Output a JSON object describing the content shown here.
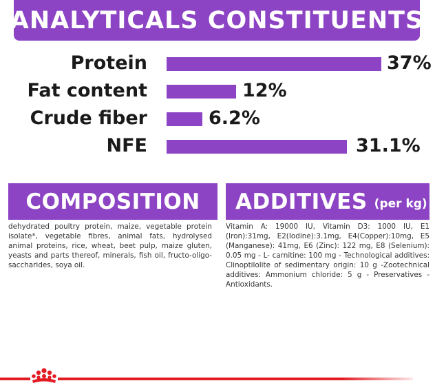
{
  "header": {
    "title": "ANALYTICALS CONSTITUENTS"
  },
  "constituents": [
    {
      "label": "Protein",
      "value_text": "37%",
      "value": 37
    },
    {
      "label": "Fat content",
      "value_text": "12%",
      "value": 12
    },
    {
      "label": "Crude fiber",
      "value_text": "6.2%",
      "value": 6.2
    },
    {
      "label": "NFE",
      "value_text": "31.1%",
      "value": 31.1
    }
  ],
  "composition": {
    "heading": "COMPOSITION",
    "text": "dehydrated poultry protein, maize, vegetable protein isolate*, vegetable fibres, animal fats, hydrolysed animal proteins, rice, wheat, beet pulp, maize gluten, yeasts and parts thereof, minerals, fish oil, fructo-oligo-saccharides, soya oil."
  },
  "additives": {
    "heading": "ADDITIVES",
    "heading_suffix": "(per kg)",
    "text": "Vitamin A: 19000 IU, Vitamin D3: 1000 IU, E1 (Iron):31mg, E2(Iodine):3.1mg, E4(Copper):10mg, E5 (Manganese): 41mg, E6 (Zinc): 122 mg, E8 (Selenium): 0.05 mg - L- carnitine: 100 mg - Technological additives: Clinoptilolite of sedimentary origin: 10 g -Zootechnical additives: Ammonium chloride: 5 g - Preservatives - Antioxidants."
  },
  "colors": {
    "accent": "#8c44c4",
    "brand_red": "#e21b22"
  },
  "footer": {
    "logo": "royal-canin-crown-icon"
  }
}
